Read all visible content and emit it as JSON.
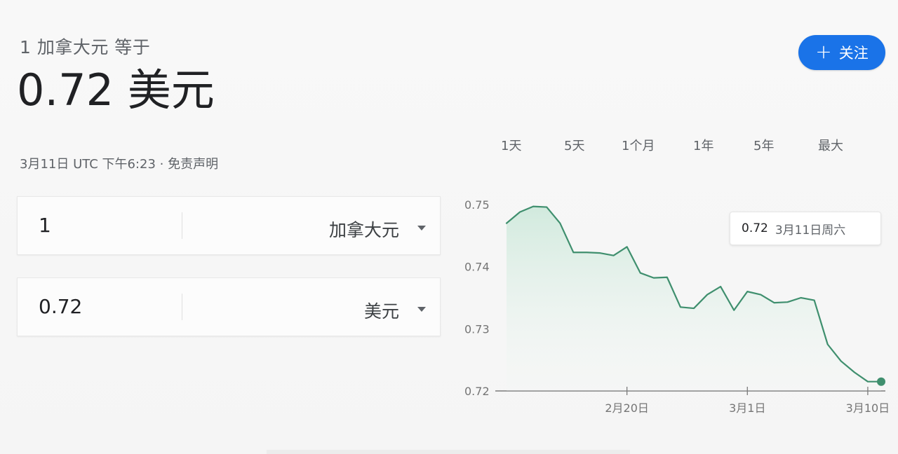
{
  "header": {
    "subtitle": "1 加拿大元 等于",
    "rate": "0.72 美元",
    "timestamp": "3月11日 UTC 下午6:23 · 免责声明"
  },
  "follow_button": {
    "icon": "plus-icon",
    "label": "关注",
    "color": "#1a73e8"
  },
  "converter": {
    "from": {
      "value": "1",
      "currency": "加拿大元"
    },
    "to": {
      "value": "0.72",
      "currency": "美元"
    }
  },
  "ranges": [
    "1天",
    "5天",
    "1个月",
    "1年",
    "5年",
    "最大"
  ],
  "tooltip": {
    "value": "0.72",
    "date": "3月11日周六"
  },
  "chart_data": {
    "type": "area",
    "title": "",
    "xlabel": "",
    "ylabel": "",
    "ylim": [
      0.72,
      0.75
    ],
    "y_ticks": [
      "0.75",
      "0.74",
      "0.73",
      "0.72"
    ],
    "x_ticks": [
      "2月20日",
      "3月1日",
      "3月10日"
    ],
    "x": [
      "2月11日",
      "2月12日",
      "2月13日",
      "2月14日",
      "2月15日",
      "2月16日",
      "2月17日",
      "2月18日",
      "2月19日",
      "2月20日",
      "2月21日",
      "2月22日",
      "2月23日",
      "2月24日",
      "2月25日",
      "2月26日",
      "2月27日",
      "2月28日",
      "3月1日",
      "3月2日",
      "3月3日",
      "3月4日",
      "3月5日",
      "3月6日",
      "3月7日",
      "3月8日",
      "3月9日",
      "3月10日",
      "3月11日"
    ],
    "values": [
      0.747,
      0.7488,
      0.7497,
      0.7496,
      0.747,
      0.7423,
      0.7423,
      0.7422,
      0.7418,
      0.7432,
      0.739,
      0.7382,
      0.7383,
      0.7335,
      0.7333,
      0.7355,
      0.7368,
      0.733,
      0.736,
      0.7355,
      0.7342,
      0.7343,
      0.735,
      0.7346,
      0.7275,
      0.7248,
      0.723,
      0.7215,
      0.7215
    ],
    "series_color": "#3f8f6e",
    "fill_color": "#d3ece0",
    "grid": false,
    "legend": "none"
  }
}
